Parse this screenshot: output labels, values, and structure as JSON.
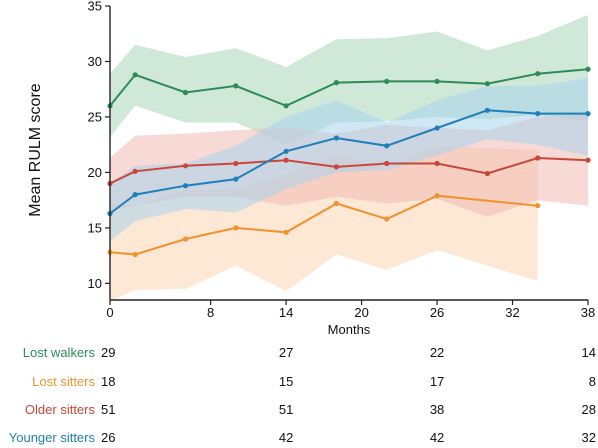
{
  "chart_data": {
    "type": "line",
    "xlabel": "Months",
    "ylabel": "Mean RULM score",
    "xlim": [
      0,
      38
    ],
    "ylim": [
      8.5,
      35
    ],
    "xticks": [
      0,
      8,
      14,
      20,
      26,
      32,
      38
    ],
    "yticks": [
      10,
      15,
      20,
      25,
      30,
      35
    ],
    "grid": false,
    "series": [
      {
        "name": "Lost walkers",
        "color": "#2e8b57",
        "band_color": "#a8d5b8",
        "x": [
          0,
          2,
          6,
          10,
          14,
          18,
          22,
          26,
          30,
          34,
          38
        ],
        "y": [
          26.0,
          28.8,
          27.2,
          27.8,
          26.0,
          28.1,
          28.2,
          28.2,
          28.0,
          28.9,
          29.3
        ],
        "lower": [
          23.2,
          26.0,
          24.5,
          24.5,
          22.5,
          24.5,
          24.6,
          25.0,
          24.8,
          25.2,
          24.6
        ],
        "upper": [
          28.9,
          31.5,
          30.4,
          31.2,
          29.5,
          32.0,
          32.1,
          32.7,
          31.0,
          32.3,
          34.2
        ]
      },
      {
        "name": "Lost sitters",
        "color": "#f0922e",
        "band_color": "#f9d5b0",
        "x": [
          0,
          2,
          6,
          10,
          14,
          18,
          22,
          26,
          34
        ],
        "y": [
          12.8,
          12.6,
          14.0,
          15.0,
          14.6,
          17.2,
          15.8,
          17.9,
          17.0
        ],
        "lower": [
          8.4,
          9.4,
          9.5,
          11.6,
          9.3,
          12.6,
          11.2,
          13.0,
          10.2
        ],
        "upper": [
          17.2,
          17.0,
          18.4,
          18.5,
          19.8,
          21.6,
          20.4,
          22.4,
          22.0
        ]
      },
      {
        "name": "Older sitters",
        "color": "#c9473a",
        "band_color": "#f0b9b3",
        "x": [
          0,
          2,
          6,
          10,
          14,
          18,
          22,
          26,
          30,
          34,
          38
        ],
        "y": [
          19.0,
          20.1,
          20.6,
          20.8,
          21.1,
          20.5,
          20.8,
          20.8,
          19.9,
          21.3,
          21.1
        ],
        "lower": [
          16.5,
          17.0,
          17.8,
          17.8,
          17.0,
          17.8,
          17.2,
          17.6,
          16.0,
          17.5,
          17.0
        ],
        "upper": [
          21.3,
          23.3,
          23.5,
          23.8,
          24.0,
          23.5,
          24.3,
          24.0,
          23.8,
          25.0,
          25.3
        ]
      },
      {
        "name": "Younger sitters",
        "color": "#1f7fb8",
        "band_color": "#a9d3ec",
        "x": [
          0,
          2,
          6,
          10,
          14,
          18,
          22,
          26,
          30,
          34,
          38
        ],
        "y": [
          16.3,
          18.0,
          18.8,
          19.4,
          21.9,
          23.1,
          22.4,
          24.0,
          25.6,
          25.3,
          25.3
        ],
        "lower": [
          13.8,
          15.6,
          16.7,
          16.4,
          18.5,
          20.0,
          20.2,
          21.5,
          23.0,
          22.5,
          21.5
        ],
        "upper": [
          19.0,
          20.6,
          20.8,
          22.4,
          25.0,
          26.5,
          24.5,
          26.5,
          27.8,
          27.8,
          28.5
        ]
      }
    ]
  },
  "risk_table": {
    "columns": [
      0,
      14,
      26,
      38
    ],
    "rows": [
      {
        "label": "Lost walkers",
        "color": "#2e8b57",
        "values": [
          "29",
          "27",
          "22",
          "14"
        ]
      },
      {
        "label": "Lost sitters",
        "color": "#f0922e",
        "values": [
          "18",
          "15",
          "17",
          "8"
        ]
      },
      {
        "label": "Older sitters",
        "color": "#c9473a",
        "values": [
          "51",
          "51",
          "38",
          "28"
        ]
      },
      {
        "label": "Younger sitters",
        "color": "#1f7fb8",
        "values": [
          "26",
          "42",
          "42",
          "32"
        ]
      }
    ]
  }
}
